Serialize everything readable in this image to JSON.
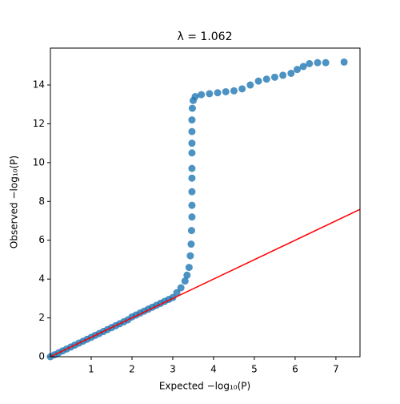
{
  "chart_data": {
    "type": "scatter",
    "title": "λ = 1.062",
    "x_label": "Expected −log₁₀(P)",
    "y_label": "Observed −log₁₀(P)",
    "color": "#1f77b4",
    "x": [
      0.0,
      0.1,
      0.2,
      0.3,
      0.4,
      0.5,
      0.6,
      0.7,
      0.8,
      0.9,
      1.0,
      1.1,
      1.2,
      1.3,
      1.4,
      1.5,
      1.6,
      1.7,
      1.8,
      1.9,
      2.0,
      2.1,
      2.2,
      2.3,
      2.4,
      2.5,
      2.6,
      2.7,
      2.8,
      2.9,
      3.0,
      3.1,
      3.2,
      3.3,
      3.35,
      3.4,
      3.43,
      3.45,
      3.46,
      3.47,
      3.47,
      3.47,
      3.47,
      3.47,
      3.47,
      3.47,
      3.47,
      3.47,
      3.48,
      3.5,
      3.55,
      3.7,
      3.9,
      4.1,
      4.3,
      4.5,
      4.7,
      4.9,
      5.1,
      5.3,
      5.5,
      5.7,
      5.9,
      6.05,
      6.2,
      6.35,
      6.55,
      6.75,
      7.2
    ],
    "y": [
      0.0,
      0.1,
      0.2,
      0.3,
      0.4,
      0.5,
      0.6,
      0.7,
      0.8,
      0.9,
      1.0,
      1.1,
      1.2,
      1.3,
      1.4,
      1.5,
      1.6,
      1.7,
      1.8,
      1.9,
      2.05,
      2.15,
      2.25,
      2.35,
      2.45,
      2.55,
      2.65,
      2.75,
      2.85,
      2.95,
      3.05,
      3.3,
      3.55,
      3.9,
      4.2,
      4.6,
      5.2,
      5.8,
      6.5,
      7.2,
      7.8,
      8.5,
      9.2,
      9.7,
      10.5,
      11.0,
      11.6,
      12.2,
      12.8,
      13.2,
      13.4,
      13.5,
      13.55,
      13.6,
      13.65,
      13.7,
      13.8,
      14.0,
      14.2,
      14.3,
      14.4,
      14.5,
      14.6,
      14.8,
      14.95,
      15.1,
      15.15,
      15.15,
      15.18
    ],
    "reference_line": {
      "color": "#ff0000",
      "x": [
        0,
        7.59
      ],
      "y": [
        0,
        7.59
      ]
    },
    "xlim": [
      0,
      7.59
    ],
    "ylim": [
      0,
      15.9
    ],
    "xticks": [
      1,
      2,
      3,
      4,
      5,
      6,
      7
    ],
    "yticks": [
      0,
      2,
      4,
      6,
      8,
      10,
      12,
      14
    ]
  }
}
